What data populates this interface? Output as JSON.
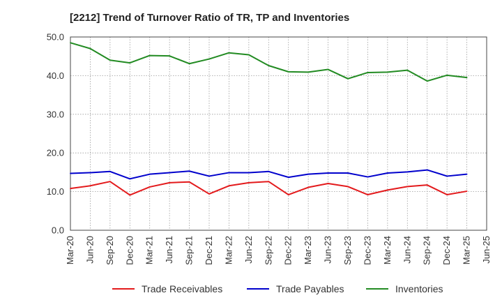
{
  "chart_data": {
    "type": "line",
    "title": "[2212]  Trend of Turnover Ratio of TR, TP and Inventories",
    "xlabel": "",
    "ylabel": "",
    "ylim": [
      0,
      50
    ],
    "yticks": [
      "0.0",
      "10.0",
      "20.0",
      "30.0",
      "40.0",
      "50.0"
    ],
    "x_tick_labels": [
      "Mar-20",
      "Jun-20",
      "Sep-20",
      "Dec-20",
      "Mar-21",
      "Jun-21",
      "Sep-21",
      "Dec-21",
      "Mar-22",
      "Jun-22",
      "Sep-22",
      "Dec-22",
      "Mar-23",
      "Jun-23",
      "Sep-23",
      "Dec-23",
      "Mar-24",
      "Jun-24",
      "Sep-24",
      "Dec-24",
      "Mar-25",
      "Jun-25"
    ],
    "x": [
      "Mar-20",
      "Jun-20",
      "Sep-20",
      "Dec-20",
      "Mar-21",
      "Jun-21",
      "Sep-21",
      "Dec-21",
      "Mar-22",
      "Jun-22",
      "Sep-22",
      "Dec-22",
      "Mar-23",
      "Jun-23",
      "Sep-23",
      "Dec-23",
      "Mar-24",
      "Jun-24",
      "Sep-24",
      "Dec-24",
      "Mar-25"
    ],
    "grid": true,
    "legend_position": "bottom",
    "series": [
      {
        "name": "Trade Receivables",
        "color": "#e31a1c",
        "values": [
          10.8,
          11.5,
          12.6,
          9.1,
          11.2,
          12.3,
          12.5,
          9.4,
          11.5,
          12.3,
          12.6,
          9.2,
          11.1,
          12.1,
          11.3,
          9.2,
          10.4,
          11.3,
          11.7,
          9.2,
          10.1
        ]
      },
      {
        "name": "Trade Payables",
        "color": "#0000cc",
        "values": [
          14.7,
          14.9,
          15.2,
          13.3,
          14.5,
          14.9,
          15.3,
          14.0,
          14.9,
          14.9,
          15.2,
          13.7,
          14.5,
          14.8,
          14.8,
          13.8,
          14.8,
          15.1,
          15.6,
          14.0,
          14.5
        ]
      },
      {
        "name": "Inventories",
        "color": "#228b22",
        "values": [
          48.5,
          47.0,
          44.0,
          43.3,
          45.2,
          45.1,
          43.1,
          44.3,
          45.9,
          45.4,
          42.6,
          41.0,
          40.9,
          41.6,
          39.2,
          40.8,
          40.9,
          41.4,
          38.6,
          40.1,
          39.5
        ]
      }
    ]
  }
}
